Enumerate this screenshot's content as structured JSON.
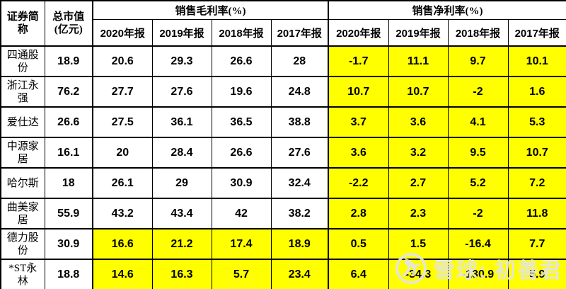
{
  "colors": {
    "highlight": "#FFFF00",
    "border": "#000000",
    "background": "#FFFFFF",
    "watermark": "#E4E4E4"
  },
  "watermark": {
    "icon": "xueqiu-logo",
    "text": "雪球: 初善君"
  },
  "chart_data": {
    "type": "table",
    "header": {
      "name_col": "证券简称",
      "cap_col": "总市值(亿元)",
      "group_gross": "销售毛利率(%)",
      "group_net": "销售净利率(%)",
      "year_cols": [
        "2020年报",
        "2019年报",
        "2018年报",
        "2017年报"
      ]
    },
    "highlight_note": "net-margin cells highlighted yellow for all rows; gross-margin cells also highlighted for 德力股份 and *ST永林",
    "rows": [
      {
        "name": "四通股份",
        "cap": "18.9",
        "gross": [
          "20.6",
          "29.3",
          "26.6",
          "28"
        ],
        "net": [
          "-1.7",
          "11.1",
          "9.7",
          "10.1"
        ],
        "yellow_gross": false
      },
      {
        "name": "浙江永强",
        "cap": "76.2",
        "gross": [
          "27.7",
          "27.6",
          "19.6",
          "24.8"
        ],
        "net": [
          "10.7",
          "10.7",
          "-2",
          "1.6"
        ],
        "yellow_gross": false
      },
      {
        "name": "爱仕达",
        "cap": "26.6",
        "gross": [
          "27.5",
          "36.1",
          "36.5",
          "38.8"
        ],
        "net": [
          "3.7",
          "3.6",
          "4.1",
          "5.3"
        ],
        "yellow_gross": false
      },
      {
        "name": "中源家居",
        "cap": "16.1",
        "gross": [
          "20",
          "28.4",
          "26.6",
          "27.6"
        ],
        "net": [
          "3.6",
          "3.2",
          "9.5",
          "10.7"
        ],
        "yellow_gross": false
      },
      {
        "name": "哈尔斯",
        "cap": "18",
        "gross": [
          "26.1",
          "29",
          "30.9",
          "32.4"
        ],
        "net": [
          "-2.2",
          "2.7",
          "5.2",
          "7.2"
        ],
        "yellow_gross": false
      },
      {
        "name": "曲美家居",
        "cap": "55.9",
        "gross": [
          "43.2",
          "43.4",
          "42",
          "38.2"
        ],
        "net": [
          "2.8",
          "2.3",
          "-2",
          "11.8"
        ],
        "yellow_gross": false
      },
      {
        "name": "德力股份",
        "cap": "30.9",
        "gross": [
          "16.6",
          "21.2",
          "17.4",
          "18.9"
        ],
        "net": [
          "0.5",
          "1.5",
          "-16.4",
          "7.7"
        ],
        "yellow_gross": true
      },
      {
        "name": "*ST永林",
        "cap": "18.8",
        "gross": [
          "14.6",
          "16.3",
          "5.7",
          "23.4"
        ],
        "net": [
          "6.4",
          "-34.3",
          "-130.9",
          "5.9"
        ],
        "yellow_gross": true
      }
    ]
  }
}
